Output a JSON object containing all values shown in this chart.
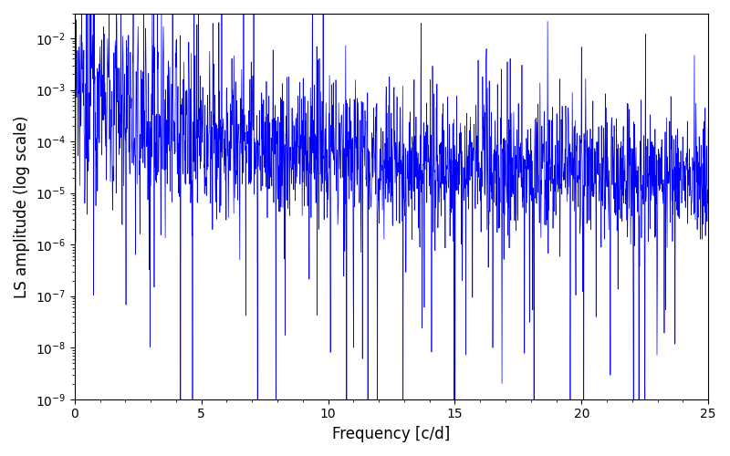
{
  "title": "",
  "xlabel": "Frequency [c/d]",
  "ylabel": "LS amplitude (log scale)",
  "xlim": [
    0,
    25
  ],
  "ylim": [
    1e-09,
    0.03
  ],
  "line_color": "#0000FF",
  "line_width": 0.5,
  "figsize": [
    8.0,
    5.0
  ],
  "dpi": 100,
  "seed": 12345,
  "n_points": 2000,
  "freq_max": 25.0,
  "base_log_amplitude": -4.0,
  "envelope_decay": 0.8,
  "noise_std": 0.8,
  "spike_std_low": 1.8,
  "spike_std_high": 1.2
}
